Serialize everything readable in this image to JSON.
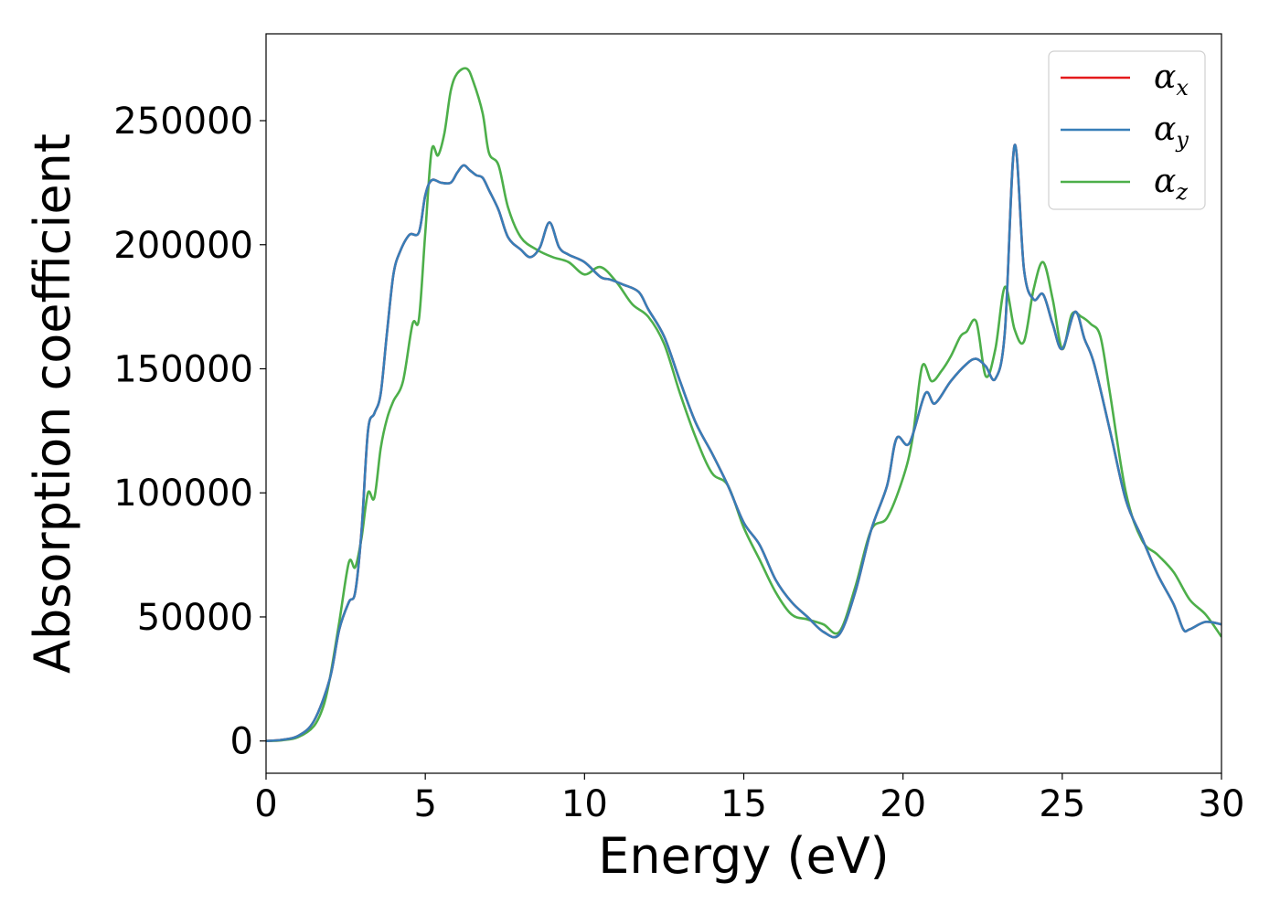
{
  "chart_data": {
    "type": "line",
    "xlabel": "Energy (eV)",
    "ylabel": "Absorption coefficient",
    "xlim": [
      0,
      30
    ],
    "ylim": [
      -13000,
      285000
    ],
    "xticks": [
      0,
      5,
      10,
      15,
      20,
      25,
      30
    ],
    "yticks": [
      0,
      50000,
      100000,
      150000,
      200000,
      250000
    ],
    "xtick_labels": [
      "0",
      "5",
      "10",
      "15",
      "20",
      "25",
      "30"
    ],
    "ytick_labels": [
      "0",
      "50000",
      "100000",
      "150000",
      "200000",
      "250000"
    ],
    "grid": false,
    "legend_position": "top-right",
    "legend": [
      {
        "symbol": "α",
        "subscript": "x",
        "color": "#e41a1c"
      },
      {
        "symbol": "α",
        "subscript": "y",
        "color": "#377eb8"
      },
      {
        "symbol": "α",
        "subscript": "z",
        "color": "#4daf4a"
      }
    ],
    "series": [
      {
        "name": "αx",
        "color": "#e41a1c",
        "x": [
          0,
          0.5,
          1.0,
          1.5,
          2.0,
          2.3,
          2.6,
          2.8,
          3.0,
          3.2,
          3.4,
          3.6,
          3.8,
          4.0,
          4.2,
          4.5,
          4.8,
          5.0,
          5.2,
          5.5,
          5.8,
          6.0,
          6.2,
          6.4,
          6.6,
          6.8,
          7.0,
          7.3,
          7.6,
          8.0,
          8.3,
          8.6,
          8.9,
          9.2,
          9.5,
          10.0,
          10.5,
          10.8,
          11.2,
          11.7,
          12.0,
          12.5,
          13.0,
          13.5,
          14.0,
          14.5,
          15.0,
          15.5,
          16.0,
          16.5,
          17.0,
          17.5,
          18.0,
          18.5,
          19.0,
          19.5,
          19.8,
          20.2,
          20.7,
          21.0,
          21.5,
          22.0,
          22.3,
          22.6,
          22.9,
          23.2,
          23.5,
          23.8,
          24.1,
          24.4,
          24.7,
          25.0,
          25.4,
          25.7,
          26.0,
          26.5,
          27.0,
          27.5,
          28.0,
          28.5,
          28.8,
          29.0,
          29.5,
          30.0
        ],
        "y": [
          0,
          500,
          2000,
          8000,
          25000,
          45000,
          56000,
          60000,
          85000,
          125000,
          132000,
          140000,
          165000,
          188000,
          197000,
          204000,
          205000,
          220000,
          226000,
          225000,
          225000,
          229000,
          232000,
          230000,
          228000,
          227000,
          222000,
          214000,
          203000,
          198000,
          195000,
          199000,
          209000,
          199000,
          196000,
          193000,
          187000,
          186000,
          184000,
          181000,
          174000,
          163000,
          145000,
          128000,
          116000,
          103000,
          88000,
          79000,
          65000,
          56000,
          50000,
          44000,
          43000,
          60000,
          85000,
          103000,
          122000,
          120000,
          140000,
          136000,
          145000,
          152000,
          154000,
          151000,
          146000,
          165000,
          240000,
          190000,
          178000,
          180000,
          168000,
          158000,
          173000,
          162000,
          152000,
          125000,
          97000,
          82000,
          67000,
          55000,
          45000,
          45000,
          48000,
          47000
        ]
      },
      {
        "name": "αy",
        "color": "#377eb8",
        "x": [
          0,
          0.5,
          1.0,
          1.5,
          2.0,
          2.3,
          2.6,
          2.8,
          3.0,
          3.2,
          3.4,
          3.6,
          3.8,
          4.0,
          4.2,
          4.5,
          4.8,
          5.0,
          5.2,
          5.5,
          5.8,
          6.0,
          6.2,
          6.4,
          6.6,
          6.8,
          7.0,
          7.3,
          7.6,
          8.0,
          8.3,
          8.6,
          8.9,
          9.2,
          9.5,
          10.0,
          10.5,
          10.8,
          11.2,
          11.7,
          12.0,
          12.5,
          13.0,
          13.5,
          14.0,
          14.5,
          15.0,
          15.5,
          16.0,
          16.5,
          17.0,
          17.5,
          18.0,
          18.5,
          19.0,
          19.5,
          19.8,
          20.2,
          20.7,
          21.0,
          21.5,
          22.0,
          22.3,
          22.6,
          22.9,
          23.2,
          23.5,
          23.8,
          24.1,
          24.4,
          24.7,
          25.0,
          25.4,
          25.7,
          26.0,
          26.5,
          27.0,
          27.5,
          28.0,
          28.5,
          28.8,
          29.0,
          29.5,
          30.0
        ],
        "y": [
          0,
          500,
          2000,
          8000,
          25000,
          45000,
          56000,
          60000,
          85000,
          125000,
          132000,
          140000,
          165000,
          188000,
          197000,
          204000,
          205000,
          220000,
          226000,
          225000,
          225000,
          229000,
          232000,
          230000,
          228000,
          227000,
          222000,
          214000,
          203000,
          198000,
          195000,
          199000,
          209000,
          199000,
          196000,
          193000,
          187000,
          186000,
          184000,
          181000,
          174000,
          163000,
          145000,
          128000,
          116000,
          103000,
          88000,
          79000,
          65000,
          56000,
          50000,
          44000,
          43000,
          60000,
          85000,
          103000,
          122000,
          120000,
          140000,
          136000,
          145000,
          152000,
          154000,
          151000,
          146000,
          165000,
          240000,
          190000,
          178000,
          180000,
          168000,
          158000,
          173000,
          162000,
          152000,
          125000,
          97000,
          82000,
          67000,
          55000,
          45000,
          45000,
          48000,
          47000
        ]
      },
      {
        "name": "αz",
        "color": "#4daf4a",
        "x": [
          0,
          0.5,
          1.0,
          1.5,
          1.8,
          2.0,
          2.3,
          2.6,
          2.8,
          3.0,
          3.2,
          3.4,
          3.6,
          3.8,
          4.0,
          4.3,
          4.6,
          4.8,
          5.0,
          5.2,
          5.4,
          5.6,
          5.8,
          6.0,
          6.3,
          6.5,
          6.8,
          7.0,
          7.3,
          7.6,
          8.0,
          8.5,
          9.0,
          9.5,
          10.0,
          10.5,
          11.0,
          11.5,
          12.0,
          12.5,
          13.0,
          13.5,
          14.0,
          14.5,
          15.0,
          15.5,
          16.0,
          16.5,
          17.0,
          17.5,
          18.0,
          18.5,
          19.0,
          19.5,
          20.0,
          20.3,
          20.6,
          20.9,
          21.2,
          21.5,
          21.8,
          22.0,
          22.3,
          22.6,
          22.9,
          23.2,
          23.5,
          23.8,
          24.1,
          24.4,
          24.7,
          25.0,
          25.3,
          25.6,
          25.9,
          26.2,
          26.5,
          27.0,
          27.5,
          28.0,
          28.5,
          29.0,
          29.5,
          30.0
        ],
        "y": [
          0,
          300,
          1500,
          6000,
          14000,
          25000,
          48000,
          72000,
          70000,
          82000,
          100000,
          98000,
          118000,
          130000,
          137000,
          145000,
          168000,
          170000,
          205000,
          238000,
          236000,
          245000,
          262000,
          269000,
          271000,
          266000,
          253000,
          237000,
          232000,
          215000,
          203000,
          198000,
          195000,
          193000,
          188000,
          191000,
          185000,
          176000,
          171000,
          160000,
          140000,
          122000,
          108000,
          103000,
          86000,
          73000,
          60000,
          51000,
          49000,
          47000,
          44000,
          62000,
          85000,
          90000,
          106000,
          122000,
          151000,
          145000,
          149000,
          155000,
          163000,
          165000,
          169000,
          147000,
          158000,
          183000,
          166000,
          161000,
          182000,
          193000,
          178000,
          158000,
          172000,
          171000,
          168000,
          163000,
          140000,
          100000,
          81000,
          75000,
          68000,
          57000,
          51000,
          42000
        ]
      }
    ]
  }
}
